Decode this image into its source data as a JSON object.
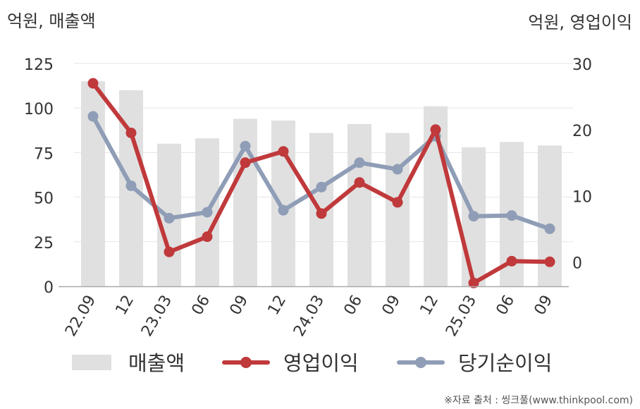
{
  "chart_data": {
    "type": "bar",
    "left_axis_label": "억원, 매출액",
    "right_axis_label": "억원, 영업이익",
    "categories": [
      "22.09",
      "12",
      "23.03",
      "06",
      "09",
      "12",
      "24.03",
      "06",
      "09",
      "12",
      "25.03",
      "06",
      "09"
    ],
    "series": [
      {
        "name": "매출액",
        "kind": "bar",
        "axis": "left",
        "color": "#e0e0e0",
        "values": [
          115,
          110,
          80,
          83,
          94,
          93,
          86,
          91,
          86,
          101,
          78,
          81,
          79
        ]
      },
      {
        "name": "영업이익",
        "kind": "line",
        "axis": "right",
        "color": "#c0393b",
        "values": [
          27,
          19.5,
          1.5,
          3.8,
          15,
          16.7,
          7.3,
          12,
          9,
          20,
          -3.2,
          0.1,
          0
        ]
      },
      {
        "name": "당기순이익",
        "kind": "line",
        "axis": "right",
        "color": "#8f9db6",
        "values": [
          22,
          11.5,
          6.6,
          7.5,
          17.5,
          7.8,
          11.3,
          15,
          14,
          19,
          6.9,
          7,
          5
        ]
      }
    ],
    "left_ticks": [
      0,
      25,
      50,
      75,
      100,
      125
    ],
    "right_ticks": [
      0,
      10,
      20,
      30
    ],
    "ylim_left": [
      0,
      125
    ],
    "ylim_right": [
      -3.7,
      30
    ],
    "grid": true,
    "legend_position": "bottom"
  },
  "source": "※자료 출처 : 씽크풀(www.thinkpool.com)"
}
